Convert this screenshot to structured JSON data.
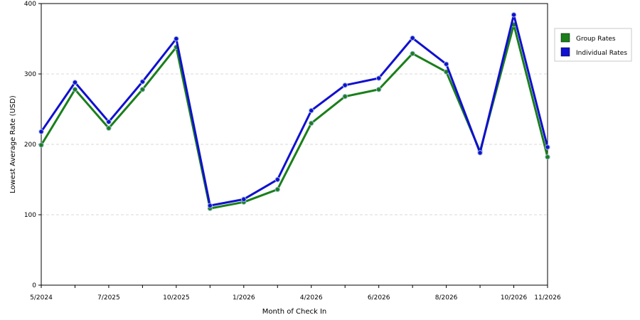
{
  "chart_data": {
    "type": "line",
    "title": "",
    "xlabel": "Month of Check In",
    "ylabel": "Lowest Average Rate (USD)",
    "ylim": [
      0,
      400
    ],
    "yticks": [
      0,
      100,
      200,
      300,
      400
    ],
    "grid": "horizontal dashed",
    "legend_position": "right",
    "categories": [
      "5/2024",
      "",
      "7/2025",
      "",
      "10/2025",
      "",
      "1/2026",
      "",
      "4/2026",
      "",
      "6/2026",
      "",
      "8/2026",
      "",
      "10/2026",
      "11/2026"
    ],
    "series": [
      {
        "name": "Group Rates",
        "color": "#1a7f1a",
        "values": [
          199,
          278,
          223,
          278,
          338,
          109,
          118,
          136,
          230,
          268,
          278,
          329,
          303,
          190,
          370,
          182
        ]
      },
      {
        "name": "Individual Rates",
        "color": "#1010d0",
        "values": [
          218,
          288,
          232,
          289,
          350,
          113,
          122,
          150,
          248,
          284,
          294,
          351,
          314,
          188,
          384,
          196
        ]
      }
    ]
  }
}
